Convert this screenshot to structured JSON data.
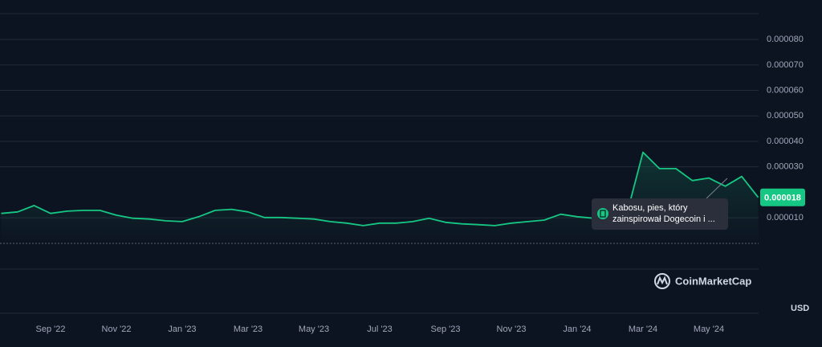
{
  "chart_data": {
    "type": "line",
    "categories": [
      null,
      null,
      null,
      "Sep '22",
      null,
      null,
      null,
      "Nov '22",
      null,
      null,
      null,
      "Jan '23",
      null,
      null,
      null,
      "Mar '23",
      null,
      null,
      null,
      "May '23",
      null,
      null,
      null,
      "Jul '23",
      null,
      null,
      null,
      "Sep '23",
      null,
      null,
      null,
      "Nov '23",
      null,
      null,
      null,
      "Jan '24",
      null,
      null,
      null,
      "Mar '24",
      null,
      null,
      null,
      "May '24",
      null,
      null,
      null
    ],
    "series": [
      {
        "color": "#16c784",
        "values": [
          1.17e-05,
          1.23e-05,
          1.48e-05,
          1.17e-05,
          1.26e-05,
          1.29e-05,
          1.29e-05,
          1.1e-05,
          9.8e-06,
          9.5e-06,
          8.8e-06,
          8.5e-06,
          1.04e-05,
          1.29e-05,
          1.33e-05,
          1.23e-05,
          1.01e-05,
          1.01e-05,
          9.8e-06,
          9.5e-06,
          8.5e-06,
          7.9e-06,
          6.9e-06,
          7.9e-06,
          7.9e-06,
          8.5e-06,
          9.8e-06,
          8.2e-06,
          7.6e-06,
          7.3e-06,
          6.9e-06,
          7.9e-06,
          8.5e-06,
          9.1e-06,
          1.14e-05,
          1.04e-05,
          9.8e-06,
          1.1e-05,
          1.1e-05,
          3.57e-05,
          2.93e-05,
          2.93e-05,
          2.46e-05,
          2.56e-05,
          2.24e-05,
          2.62e-05,
          1.8e-05
        ]
      }
    ],
    "ylim": [
      -2.75e-05,
      9.55e-05
    ],
    "yticks": [
      {
        "value": 1e-05,
        "label": "0.000010"
      },
      {
        "value": 3e-05,
        "label": "0.000030"
      },
      {
        "value": 4e-05,
        "label": "0.000040"
      },
      {
        "value": 5e-05,
        "label": "0.000050"
      },
      {
        "value": 6e-05,
        "label": "0.000060"
      },
      {
        "value": 7e-05,
        "label": "0.000070"
      },
      {
        "value": 8e-05,
        "label": "0.000080"
      }
    ],
    "grid": true,
    "current_price_label": "0.000018",
    "annotation": [
      "Kabosu, pies, który",
      "zainspirował Dogecoin i ..."
    ],
    "watermark": "CoinMarketCap",
    "currency": "USD"
  }
}
